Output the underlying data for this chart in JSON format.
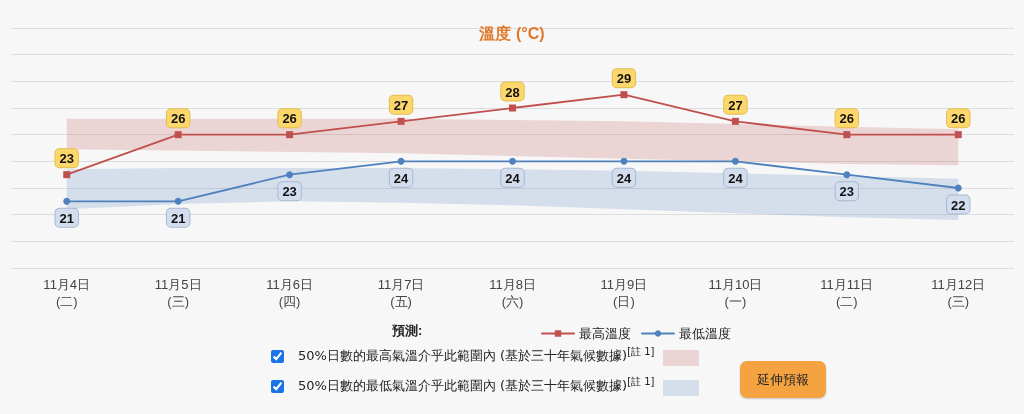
{
  "chart_data": {
    "type": "line",
    "title": "溫度 (°C)",
    "legend_title": "預測:",
    "categories": [
      "11月4日\n(二)",
      "11月5日\n(三)",
      "11月6日\n(四)",
      "11月7日\n(五)",
      "11月8日\n(六)",
      "11月9日\n(日)",
      "11月10日\n(一)",
      "11月11日\n(二)",
      "11月12日\n(三)"
    ],
    "series": [
      {
        "name": "最高溫度",
        "color": "#c0504d",
        "marker": "square",
        "values": [
          23,
          26,
          26,
          27,
          28,
          29,
          27,
          26,
          26
        ],
        "lower": [
          24.9,
          null,
          null,
          24.6,
          24.4,
          24.2,
          24.0,
          23.8,
          23.7
        ],
        "upper": [
          27.2,
          null,
          null,
          27.2,
          27.1,
          27.0,
          26.8,
          26.6,
          26.4
        ]
      },
      {
        "name": "最低溫度",
        "color": "#4f81bd",
        "marker": "circle",
        "values": [
          21,
          21,
          23,
          24,
          24,
          24,
          24,
          23,
          22
        ],
        "lower": [
          20.4,
          20.8,
          21.0,
          20.9,
          20.7,
          20.4,
          null,
          19.8,
          19.6
        ],
        "upper": [
          23.4,
          23.5,
          23.5,
          23.5,
          23.4,
          23.3,
          null,
          22.9,
          22.7
        ]
      }
    ],
    "ylim": [
      16,
      34
    ],
    "yticks": [
      16,
      18,
      20,
      22,
      24,
      26,
      28,
      30,
      32,
      34
    ],
    "tick_labels": "x",
    "grid": "y",
    "legend": "bottom",
    "data_labels": true,
    "annotations": [
      "50%日數的最高氣溫介乎此範圍內 (基於三十年氣候數據)$^{[註 1]}$",
      "50%日數的最低氣溫介乎此範圍內 (基於三十年氣候數據)$^{[註 1]}$",
      "延伸預報"
    ]
  }
}
